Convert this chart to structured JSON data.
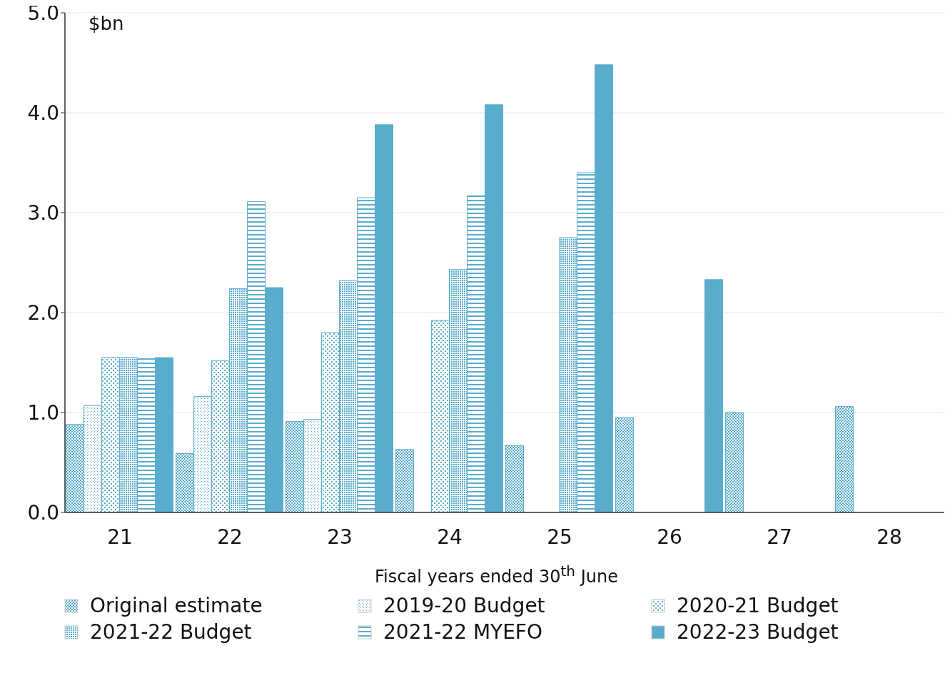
{
  "chart_data": {
    "type": "bar",
    "xlabel": "Fiscal years ended 30$^{th}$ June",
    "ylabel": "$bn",
    "categories": [
      "21",
      "22",
      "23",
      "24",
      "25",
      "26",
      "27",
      "28"
    ],
    "series": [
      {
        "name": "Original estimate",
        "color": "#5aaccc",
        "values": [
          0.88,
          0.59,
          0.91,
          0.63,
          0.67,
          0.95,
          1.0,
          1.06
        ]
      },
      {
        "name": "2019-20 Budget",
        "color": "#5aaccc",
        "values": [
          1.07,
          1.16,
          0.93,
          null,
          null,
          null,
          null,
          null
        ]
      },
      {
        "name": "2020-21 Budget",
        "color": "#5aaccc",
        "values": [
          1.55,
          1.52,
          1.8,
          1.92,
          null,
          null,
          null,
          null
        ]
      },
      {
        "name": "2021-22 Budget",
        "color": "#5aaccc",
        "values": [
          1.55,
          2.24,
          2.32,
          2.43,
          2.75,
          null,
          null,
          null
        ]
      },
      {
        "name": "2021-22 MYEFO",
        "color": "#5aaccc",
        "values": [
          1.54,
          3.11,
          3.15,
          3.17,
          3.4,
          null,
          null,
          null
        ]
      },
      {
        "name": "2022-23 Budget",
        "color": "#5aaccc",
        "values": [
          1.55,
          2.25,
          3.88,
          4.08,
          4.48,
          2.33,
          null,
          null
        ]
      }
    ],
    "ylim": [
      0,
      5
    ],
    "yticks": [
      {
        "value": 0,
        "label": "0.0"
      },
      {
        "value": 1,
        "label": "1.0"
      },
      {
        "value": 2,
        "label": "2.0"
      },
      {
        "value": 3,
        "label": "3.0"
      },
      {
        "value": 4,
        "label": "4.0"
      },
      {
        "value": 5,
        "label": "5.0"
      }
    ],
    "grid": "y",
    "legend": "bottom"
  }
}
